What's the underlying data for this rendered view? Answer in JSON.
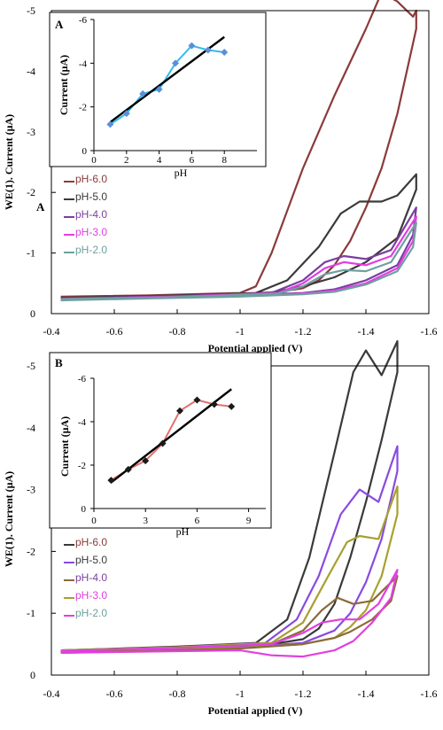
{
  "colors": {
    "pH-6.0": "#8b3a3a",
    "pH-5.0": "#3a3a3a",
    "pH-4.0": "#7a3fa0",
    "pH-3.0": "#e040e0",
    "pH-2.0": "#6fa0a0"
  },
  "chart_data": [
    {
      "panel": "A",
      "type": "line",
      "xlabel": "Potential applied (V)",
      "ylabel": "WE(1). Current (μA)",
      "xlim": [
        -0.4,
        -1.6
      ],
      "ylim": [
        0,
        -5
      ],
      "x_ticks": [
        "-0.4",
        "-0.6",
        "-0.8",
        "-1",
        "-1.2",
        "-1.4",
        "-1.6"
      ],
      "y_ticks": [
        "0",
        "-1",
        "-2",
        "-3",
        "-4",
        "-5"
      ],
      "stray_label": "A",
      "legend": [
        {
          "label": "pH-6.0",
          "line_color": "#8b3a3a",
          "text_color": "#8b3a3a"
        },
        {
          "label": "pH-5.0",
          "line_color": "#3a3a3a",
          "text_color": "#3a3a3a"
        },
        {
          "label": "pH-4.0",
          "line_color": "#7a3fa0",
          "text_color": "#7a3fa0"
        },
        {
          "label": "pH-3.0",
          "line_color": "#e040e0",
          "text_color": "#e040e0"
        },
        {
          "label": "pH-2.0",
          "line_color": "#6fa0a0",
          "text_color": "#6fa0a0"
        }
      ],
      "series": [
        {
          "name": "pH-6.0",
          "color": "#8b3a3a",
          "forward": [
            [
              -0.43,
              -0.28
            ],
            [
              -0.7,
              -0.3
            ],
            [
              -1.0,
              -0.34
            ],
            [
              -1.05,
              -0.45
            ],
            [
              -1.1,
              -1.0
            ],
            [
              -1.2,
              -2.4
            ],
            [
              -1.3,
              -3.6
            ],
            [
              -1.4,
              -4.7
            ],
            [
              -1.45,
              -5.3
            ],
            [
              -1.5,
              -5.15
            ],
            [
              -1.55,
              -4.9
            ],
            [
              -1.56,
              -5.0
            ]
          ],
          "reverse": [
            [
              -1.56,
              -5.0
            ],
            [
              -1.56,
              -4.7
            ],
            [
              -1.5,
              -3.3
            ],
            [
              -1.45,
              -2.4
            ],
            [
              -1.4,
              -1.75
            ],
            [
              -1.35,
              -1.2
            ],
            [
              -1.3,
              -0.8
            ],
            [
              -1.25,
              -0.55
            ],
            [
              -1.2,
              -0.42
            ],
            [
              -1.1,
              -0.34
            ],
            [
              -0.8,
              -0.3
            ],
            [
              -0.43,
              -0.27
            ]
          ]
        },
        {
          "name": "pH-5.0",
          "color": "#3a3a3a",
          "forward": [
            [
              -0.43,
              -0.26
            ],
            [
              -0.8,
              -0.3
            ],
            [
              -1.05,
              -0.34
            ],
            [
              -1.15,
              -0.55
            ],
            [
              -1.25,
              -1.1
            ],
            [
              -1.32,
              -1.65
            ],
            [
              -1.38,
              -1.85
            ],
            [
              -1.45,
              -1.85
            ],
            [
              -1.5,
              -1.95
            ],
            [
              -1.56,
              -2.3
            ]
          ],
          "reverse": [
            [
              -1.56,
              -2.3
            ],
            [
              -1.56,
              -2.05
            ],
            [
              -1.5,
              -1.25
            ],
            [
              -1.4,
              -0.85
            ],
            [
              -1.3,
              -0.6
            ],
            [
              -1.2,
              -0.45
            ],
            [
              -1.1,
              -0.35
            ],
            [
              -0.8,
              -0.29
            ],
            [
              -0.43,
              -0.25
            ]
          ]
        },
        {
          "name": "pH-4.0",
          "color": "#7a3fa0",
          "forward": [
            [
              -0.43,
              -0.25
            ],
            [
              -0.8,
              -0.29
            ],
            [
              -1.1,
              -0.34
            ],
            [
              -1.2,
              -0.55
            ],
            [
              -1.27,
              -0.85
            ],
            [
              -1.33,
              -0.95
            ],
            [
              -1.4,
              -0.9
            ],
            [
              -1.48,
              -1.05
            ],
            [
              -1.56,
              -1.75
            ]
          ],
          "reverse": [
            [
              -1.56,
              -1.75
            ],
            [
              -1.55,
              -1.3
            ],
            [
              -1.5,
              -0.8
            ],
            [
              -1.4,
              -0.55
            ],
            [
              -1.3,
              -0.4
            ],
            [
              -1.2,
              -0.34
            ],
            [
              -1.0,
              -0.3
            ],
            [
              -0.7,
              -0.27
            ],
            [
              -0.43,
              -0.24
            ]
          ]
        },
        {
          "name": "pH-3.0",
          "color": "#e040e0",
          "forward": [
            [
              -0.43,
              -0.24
            ],
            [
              -0.8,
              -0.28
            ],
            [
              -1.12,
              -0.34
            ],
            [
              -1.2,
              -0.5
            ],
            [
              -1.27,
              -0.75
            ],
            [
              -1.33,
              -0.85
            ],
            [
              -1.4,
              -0.8
            ],
            [
              -1.48,
              -0.95
            ],
            [
              -1.56,
              -1.6
            ]
          ],
          "reverse": [
            [
              -1.56,
              -1.6
            ],
            [
              -1.55,
              -1.2
            ],
            [
              -1.5,
              -0.75
            ],
            [
              -1.4,
              -0.5
            ],
            [
              -1.3,
              -0.38
            ],
            [
              -1.2,
              -0.33
            ],
            [
              -1.0,
              -0.29
            ],
            [
              -0.7,
              -0.26
            ],
            [
              -0.43,
              -0.23
            ]
          ]
        },
        {
          "name": "pH-2.0",
          "color": "#6fa0a0",
          "forward": [
            [
              -0.43,
              -0.24
            ],
            [
              -0.8,
              -0.27
            ],
            [
              -1.12,
              -0.33
            ],
            [
              -1.2,
              -0.45
            ],
            [
              -1.27,
              -0.65
            ],
            [
              -1.33,
              -0.72
            ],
            [
              -1.4,
              -0.7
            ],
            [
              -1.48,
              -0.85
            ],
            [
              -1.56,
              -1.5
            ]
          ],
          "reverse": [
            [
              -1.56,
              -1.5
            ],
            [
              -1.55,
              -1.1
            ],
            [
              -1.5,
              -0.7
            ],
            [
              -1.4,
              -0.48
            ],
            [
              -1.3,
              -0.36
            ],
            [
              -1.2,
              -0.32
            ],
            [
              -1.0,
              -0.28
            ],
            [
              -0.7,
              -0.25
            ],
            [
              -0.43,
              -0.22
            ]
          ]
        }
      ],
      "inset": {
        "panel_label": "A",
        "type": "line",
        "xlabel": "pH",
        "ylabel": "Current (μA)",
        "xlim": [
          0,
          10
        ],
        "ylim": [
          0,
          -6
        ],
        "x_ticks": [
          "0",
          "2",
          "4",
          "6",
          "8"
        ],
        "y_ticks": [
          "0",
          "-2",
          "-4",
          "-6"
        ],
        "x": [
          1,
          2,
          3,
          4,
          5,
          6,
          7,
          8
        ],
        "y": [
          -1.2,
          -1.7,
          -2.6,
          -2.8,
          -4.0,
          -4.8,
          -4.6,
          -4.5
        ],
        "fit_line": [
          [
            1,
            -1.3
          ],
          [
            8,
            -5.2
          ]
        ],
        "marker_color": "#5b8fd8",
        "line_color": "#33bbee",
        "fit_color": "#000000"
      }
    },
    {
      "panel": "B",
      "type": "line",
      "xlabel": "Potential applied (V)",
      "ylabel": "WE(1). Current (μA)",
      "xlim": [
        -0.4,
        -1.6
      ],
      "ylim": [
        0,
        -5
      ],
      "x_ticks": [
        "-0.4",
        "-0.6",
        "-0.8",
        "-1",
        "-1.2",
        "-1.4",
        "-1.6"
      ],
      "y_ticks": [
        "0",
        "-1",
        "-2",
        "-3",
        "-4",
        "-5"
      ],
      "legend": [
        {
          "label": "pH-6.0",
          "line_color": "#3a3a3a",
          "text_color": "#8b3a3a"
        },
        {
          "label": "pH-5.0",
          "line_color": "#8a4ae0",
          "text_color": "#3a3a3a"
        },
        {
          "label": "pH-4.0",
          "line_color": "#8b6a3a",
          "text_color": "#7a3fa0"
        },
        {
          "label": "pH-3.0",
          "line_color": "#a8a030",
          "text_color": "#e040e0"
        },
        {
          "label": "pH-2.0",
          "line_color": "#e040e0",
          "text_color": "#6fa0a0"
        }
      ],
      "series": [
        {
          "name": "pH-6.0",
          "color": "#3a3a3a",
          "forward": [
            [
              -0.43,
              -0.4
            ],
            [
              -0.8,
              -0.46
            ],
            [
              -1.05,
              -0.52
            ],
            [
              -1.15,
              -0.9
            ],
            [
              -1.22,
              -1.9
            ],
            [
              -1.3,
              -3.6
            ],
            [
              -1.36,
              -4.9
            ],
            [
              -1.4,
              -5.25
            ],
            [
              -1.45,
              -4.85
            ],
            [
              -1.5,
              -5.4
            ]
          ],
          "reverse": [
            [
              -1.5,
              -5.4
            ],
            [
              -1.5,
              -4.9
            ],
            [
              -1.45,
              -3.8
            ],
            [
              -1.4,
              -2.8
            ],
            [
              -1.35,
              -1.9
            ],
            [
              -1.3,
              -1.15
            ],
            [
              -1.25,
              -0.75
            ],
            [
              -1.2,
              -0.58
            ],
            [
              -1.1,
              -0.5
            ],
            [
              -0.8,
              -0.44
            ],
            [
              -0.58,
              -0.38
            ]
          ]
        },
        {
          "name": "pH-5.0",
          "color": "#8a4ae0",
          "forward": [
            [
              -0.43,
              -0.4
            ],
            [
              -0.8,
              -0.45
            ],
            [
              -1.08,
              -0.52
            ],
            [
              -1.18,
              -0.9
            ],
            [
              -1.25,
              -1.6
            ],
            [
              -1.32,
              -2.6
            ],
            [
              -1.38,
              -3.0
            ],
            [
              -1.44,
              -2.8
            ],
            [
              -1.5,
              -3.7
            ]
          ],
          "reverse": [
            [
              -1.5,
              -3.7
            ],
            [
              -1.5,
              -3.3
            ],
            [
              -1.45,
              -2.2
            ],
            [
              -1.4,
              -1.5
            ],
            [
              -1.35,
              -1.0
            ],
            [
              -1.3,
              -0.72
            ],
            [
              -1.2,
              -0.52
            ],
            [
              -1.0,
              -0.45
            ],
            [
              -0.7,
              -0.41
            ],
            [
              -0.43,
              -0.38
            ]
          ]
        },
        {
          "name": "pH-4.0",
          "color": "#a8a030",
          "forward": [
            [
              -0.43,
              -0.4
            ],
            [
              -0.8,
              -0.45
            ],
            [
              -1.1,
              -0.52
            ],
            [
              -1.2,
              -0.85
            ],
            [
              -1.28,
              -1.6
            ],
            [
              -1.34,
              -2.15
            ],
            [
              -1.38,
              -2.25
            ],
            [
              -1.44,
              -2.2
            ],
            [
              -1.5,
              -3.05
            ]
          ],
          "reverse": [
            [
              -1.5,
              -3.05
            ],
            [
              -1.5,
              -2.6
            ],
            [
              -1.45,
              -1.6
            ],
            [
              -1.4,
              -1.05
            ],
            [
              -1.35,
              -0.78
            ],
            [
              -1.3,
              -0.6
            ],
            [
              -1.2,
              -0.5
            ],
            [
              -1.0,
              -0.44
            ],
            [
              -0.7,
              -0.4
            ],
            [
              -0.43,
              -0.37
            ]
          ]
        },
        {
          "name": "pH-3.0",
          "color": "#8b6a3a",
          "forward": [
            [
              -0.43,
              -0.39
            ],
            [
              -0.8,
              -0.44
            ],
            [
              -1.1,
              -0.5
            ],
            [
              -1.2,
              -0.72
            ],
            [
              -1.26,
              -1.05
            ],
            [
              -1.31,
              -1.25
            ],
            [
              -1.36,
              -1.15
            ],
            [
              -1.42,
              -1.2
            ],
            [
              -1.5,
              -1.6
            ]
          ],
          "reverse": [
            [
              -1.5,
              -1.6
            ],
            [
              -1.48,
              -1.2
            ],
            [
              -1.42,
              -0.9
            ],
            [
              -1.35,
              -0.7
            ],
            [
              -1.3,
              -0.6
            ],
            [
              -1.2,
              -0.5
            ],
            [
              -1.0,
              -0.43
            ],
            [
              -0.7,
              -0.39
            ],
            [
              -0.43,
              -0.36
            ]
          ]
        },
        {
          "name": "pH-2.0",
          "color": "#e040e0",
          "forward": [
            [
              -0.43,
              -0.39
            ],
            [
              -0.8,
              -0.44
            ],
            [
              -1.1,
              -0.5
            ],
            [
              -1.2,
              -0.68
            ],
            [
              -1.26,
              -0.85
            ],
            [
              -1.32,
              -0.9
            ],
            [
              -1.38,
              -0.9
            ],
            [
              -1.44,
              -1.15
            ],
            [
              -1.5,
              -1.7
            ]
          ],
          "reverse": [
            [
              -1.5,
              -1.7
            ],
            [
              -1.48,
              -1.25
            ],
            [
              -1.42,
              -0.85
            ],
            [
              -1.36,
              -0.55
            ],
            [
              -1.3,
              -0.4
            ],
            [
              -1.2,
              -0.3
            ],
            [
              -1.1,
              -0.32
            ],
            [
              -1.0,
              -0.4
            ],
            [
              -0.7,
              -0.38
            ],
            [
              -0.43,
              -0.36
            ]
          ]
        }
      ],
      "inset": {
        "panel_label": "B",
        "type": "line",
        "xlabel": "pH",
        "ylabel": "Current (μA)",
        "xlim": [
          0,
          10
        ],
        "ylim": [
          0,
          -6
        ],
        "x_ticks": [
          "0",
          "3",
          "6",
          "9"
        ],
        "y_ticks": [
          "0",
          "-2",
          "-4",
          "-6"
        ],
        "x": [
          1,
          2,
          3,
          4,
          5,
          6,
          7,
          8
        ],
        "y": [
          -1.3,
          -1.8,
          -2.2,
          -3.0,
          -4.5,
          -5.0,
          -4.8,
          -4.7
        ],
        "fit_line": [
          [
            1,
            -1.2
          ],
          [
            8,
            -5.5
          ]
        ],
        "marker_color": "#1a1a1a",
        "line_color": "#e07070",
        "fit_color": "#000000"
      }
    }
  ]
}
